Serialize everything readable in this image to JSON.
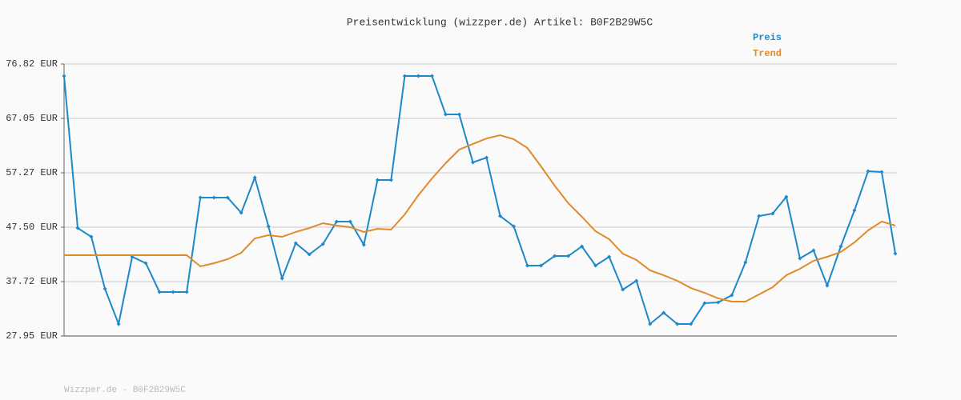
{
  "chart_data": {
    "type": "line",
    "title": "Preisentwicklung (wizzper.de) Artikel: B0F2B29W5C",
    "footer": "Wizzper.de - B0F2B29W5C",
    "ylim": [
      27.95,
      76.82
    ],
    "yticks": [
      {
        "value": 27.95,
        "label": "27.95 EUR"
      },
      {
        "value": 37.72,
        "label": "37.72 EUR"
      },
      {
        "value": 47.5,
        "label": "47.50 EUR"
      },
      {
        "value": 57.27,
        "label": "57.27 EUR"
      },
      {
        "value": 67.05,
        "label": "67.05 EUR"
      },
      {
        "value": 76.82,
        "label": "76.82 EUR"
      }
    ],
    "grid": true,
    "legend": "top-right",
    "series": [
      {
        "name": "Preis",
        "color": "#1e88c8",
        "markers": true,
        "values": [
          74.67,
          47.35,
          45.77,
          36.43,
          30.11,
          42.18,
          41.03,
          35.86,
          35.86,
          35.86,
          52.82,
          52.82,
          52.82,
          50.09,
          56.41,
          47.64,
          38.3,
          44.62,
          42.61,
          44.48,
          48.51,
          48.51,
          44.34,
          55.98,
          55.98,
          74.67,
          74.67,
          74.67,
          67.77,
          67.77,
          59.14,
          60.0,
          49.51,
          47.64,
          40.6,
          40.6,
          42.32,
          42.32,
          44.05,
          40.6,
          42.18,
          36.29,
          37.87,
          30.11,
          32.12,
          30.11,
          30.11,
          33.84,
          33.99,
          35.28,
          41.17,
          49.51,
          49.94,
          52.96,
          41.89,
          43.33,
          37.01,
          44.05,
          50.52,
          57.56,
          57.42,
          42.75
        ]
      },
      {
        "name": "Trend",
        "color": "#e08a2a",
        "markers": false,
        "values": [
          42.47,
          42.47,
          42.47,
          42.47,
          42.47,
          42.47,
          42.47,
          42.47,
          42.47,
          42.47,
          40.46,
          41.03,
          41.75,
          42.9,
          45.49,
          46.06,
          45.77,
          46.64,
          47.35,
          48.22,
          47.79,
          47.5,
          46.64,
          47.21,
          47.07,
          49.8,
          53.25,
          56.27,
          59.0,
          61.44,
          62.45,
          63.45,
          64.03,
          63.31,
          61.73,
          58.42,
          54.97,
          51.81,
          49.37,
          46.78,
          45.34,
          42.75,
          41.6,
          39.74,
          38.87,
          37.87,
          36.57,
          35.71,
          34.71,
          34.13,
          34.13,
          35.42,
          36.72,
          38.87,
          40.02,
          41.46,
          42.18,
          43.04,
          44.77,
          46.92,
          48.51,
          47.79
        ]
      }
    ]
  }
}
